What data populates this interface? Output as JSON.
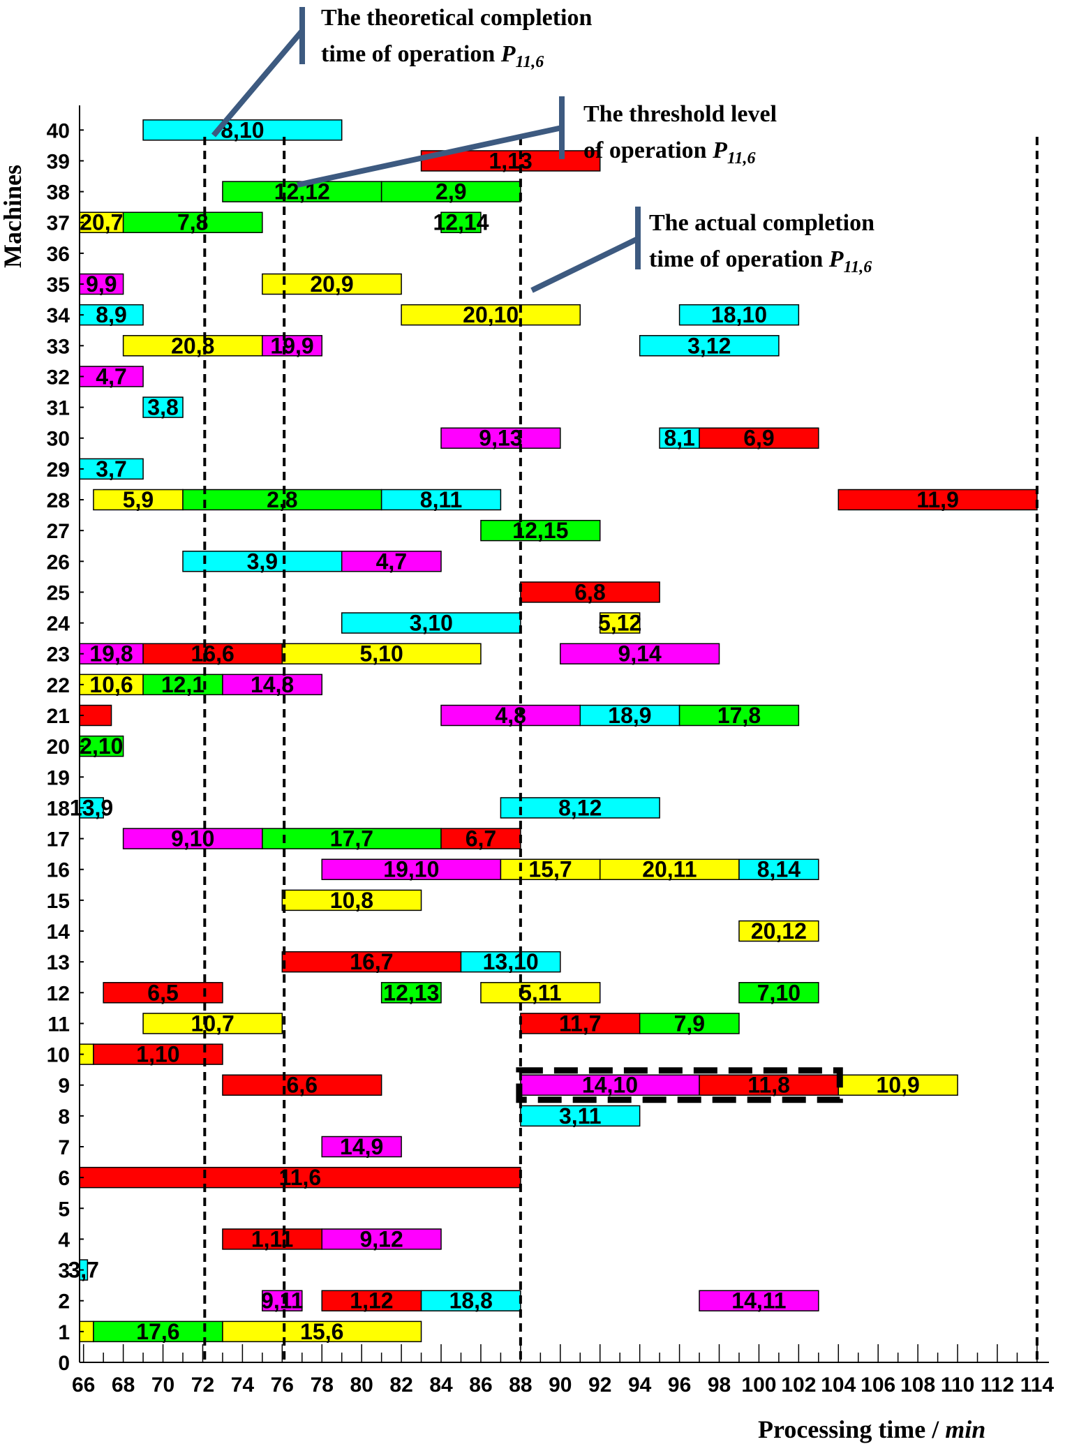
{
  "chart_data": {
    "type": "gantt",
    "title": "",
    "xlabel": {
      "text": "Processing time / ",
      "unit": "min"
    },
    "ylabel": "Machines",
    "xlim": [
      65.8,
      114.6
    ],
    "ylim": [
      0,
      40.8
    ],
    "x_ticks": [
      66,
      68,
      70,
      72,
      74,
      76,
      78,
      80,
      82,
      84,
      86,
      88,
      90,
      92,
      94,
      96,
      98,
      100,
      102,
      104,
      106,
      108,
      110,
      112,
      114
    ],
    "y_ticks": [
      0,
      1,
      2,
      3,
      4,
      5,
      6,
      7,
      8,
      9,
      10,
      11,
      12,
      13,
      14,
      15,
      16,
      17,
      18,
      19,
      20,
      21,
      22,
      23,
      24,
      25,
      26,
      27,
      28,
      29,
      30,
      31,
      32,
      33,
      34,
      35,
      36,
      37,
      38,
      39,
      40
    ],
    "colors": {
      "cyan": "#00ffff",
      "red": "#ff0000",
      "green": "#00ff00",
      "yellow": "#ffff00",
      "magenta": "#ff00ff",
      "annotation": "#3d5a80"
    },
    "vertical_lines": [
      72.1,
      76.1,
      88,
      114
    ],
    "bars": [
      {
        "machine": 40,
        "start": 69,
        "end": 79,
        "color": "cyan",
        "label": "8,10"
      },
      {
        "machine": 39,
        "start": 83,
        "end": 92,
        "color": "red",
        "label": "1,13"
      },
      {
        "machine": 38,
        "start": 73,
        "end": 81,
        "color": "green",
        "label": "12,12"
      },
      {
        "machine": 38,
        "start": 81,
        "end": 88,
        "color": "green",
        "label": "2,9"
      },
      {
        "machine": 37,
        "start": 65.8,
        "end": 68,
        "color": "yellow",
        "label": "20,7"
      },
      {
        "machine": 37,
        "start": 68,
        "end": 75,
        "color": "green",
        "label": "7,8"
      },
      {
        "machine": 37,
        "start": 84,
        "end": 86,
        "color": "green",
        "label": "12,14"
      },
      {
        "machine": 35,
        "start": 65.8,
        "end": 68,
        "color": "magenta",
        "label": "9,9"
      },
      {
        "machine": 35,
        "start": 75,
        "end": 82,
        "color": "yellow",
        "label": "20,9"
      },
      {
        "machine": 34,
        "start": 65.8,
        "end": 69,
        "color": "cyan",
        "label": "8,9"
      },
      {
        "machine": 34,
        "start": 82,
        "end": 91,
        "color": "yellow",
        "label": "20,10"
      },
      {
        "machine": 34,
        "start": 96,
        "end": 102,
        "color": "cyan",
        "label": "18,10"
      },
      {
        "machine": 33,
        "start": 68,
        "end": 75,
        "color": "yellow",
        "label": "20,8"
      },
      {
        "machine": 33,
        "start": 75,
        "end": 78,
        "color": "magenta",
        "label": "19,9"
      },
      {
        "machine": 33,
        "start": 94,
        "end": 101,
        "color": "cyan",
        "label": "3,12"
      },
      {
        "machine": 32,
        "start": 65.8,
        "end": 69,
        "color": "magenta",
        "label": "4,7"
      },
      {
        "machine": 31,
        "start": 69,
        "end": 71,
        "color": "cyan",
        "label": "3,8"
      },
      {
        "machine": 30,
        "start": 84,
        "end": 90,
        "color": "magenta",
        "label": "9,13"
      },
      {
        "machine": 30,
        "start": 95,
        "end": 97,
        "color": "cyan",
        "label": "8,1"
      },
      {
        "machine": 30,
        "start": 97,
        "end": 103,
        "color": "red",
        "label": "6,9"
      },
      {
        "machine": 29,
        "start": 65.8,
        "end": 69,
        "color": "cyan",
        "label": "3,7"
      },
      {
        "machine": 28,
        "start": 66.5,
        "end": 71,
        "color": "yellow",
        "label": "5,9"
      },
      {
        "machine": 28,
        "start": 71,
        "end": 81,
        "color": "green",
        "label": "2,8"
      },
      {
        "machine": 28,
        "start": 81,
        "end": 87,
        "color": "cyan",
        "label": "8,11"
      },
      {
        "machine": 28,
        "start": 104,
        "end": 114,
        "color": "red",
        "label": "11,9"
      },
      {
        "machine": 27,
        "start": 86,
        "end": 92,
        "color": "green",
        "label": "12,15"
      },
      {
        "machine": 26,
        "start": 71,
        "end": 79,
        "color": "cyan",
        "label": "3,9"
      },
      {
        "machine": 26,
        "start": 79,
        "end": 84,
        "color": "magenta",
        "label": "4,7"
      },
      {
        "machine": 25,
        "start": 88,
        "end": 95,
        "color": "red",
        "label": "6,8"
      },
      {
        "machine": 24,
        "start": 79,
        "end": 88,
        "color": "cyan",
        "label": "3,10"
      },
      {
        "machine": 24,
        "start": 92,
        "end": 94,
        "color": "yellow",
        "label": "5,12"
      },
      {
        "machine": 23,
        "start": 65.8,
        "end": 69,
        "color": "magenta",
        "label": "19,8"
      },
      {
        "machine": 23,
        "start": 69,
        "end": 76,
        "color": "red",
        "label": "16,6"
      },
      {
        "machine": 23,
        "start": 76,
        "end": 86,
        "color": "yellow",
        "label": "5,10"
      },
      {
        "machine": 23,
        "start": 90,
        "end": 98,
        "color": "magenta",
        "label": "9,14"
      },
      {
        "machine": 22,
        "start": 65.8,
        "end": 69,
        "color": "yellow",
        "label": "10,6"
      },
      {
        "machine": 22,
        "start": 69,
        "end": 73,
        "color": "green",
        "label": "12,1"
      },
      {
        "machine": 22,
        "start": 73,
        "end": 78,
        "color": "magenta",
        "label": "14,8"
      },
      {
        "machine": 21,
        "start": 65.8,
        "end": 67.4,
        "color": "red",
        "label": ""
      },
      {
        "machine": 21,
        "start": 84,
        "end": 91,
        "color": "magenta",
        "label": "4,8"
      },
      {
        "machine": 21,
        "start": 91,
        "end": 96,
        "color": "cyan",
        "label": "18,9"
      },
      {
        "machine": 21,
        "start": 96,
        "end": 102,
        "color": "green",
        "label": "17,8"
      },
      {
        "machine": 20,
        "start": 65.8,
        "end": 68,
        "color": "green",
        "label": "2,10"
      },
      {
        "machine": 18,
        "start": 65.8,
        "end": 67,
        "color": "cyan",
        "label": "13,9"
      },
      {
        "machine": 18,
        "start": 87,
        "end": 95,
        "color": "cyan",
        "label": "8,12"
      },
      {
        "machine": 17,
        "start": 68,
        "end": 75,
        "color": "magenta",
        "label": "9,10"
      },
      {
        "machine": 17,
        "start": 75,
        "end": 84,
        "color": "green",
        "label": "17,7"
      },
      {
        "machine": 17,
        "start": 84,
        "end": 88,
        "color": "red",
        "label": "6,7"
      },
      {
        "machine": 16,
        "start": 78,
        "end": 87,
        "color": "magenta",
        "label": "19,10"
      },
      {
        "machine": 16,
        "start": 87,
        "end": 92,
        "color": "yellow",
        "label": "15,7"
      },
      {
        "machine": 16,
        "start": 92,
        "end": 99,
        "color": "yellow",
        "label": "20,11"
      },
      {
        "machine": 16,
        "start": 99,
        "end": 103,
        "color": "cyan",
        "label": "8,14"
      },
      {
        "machine": 15,
        "start": 76,
        "end": 83,
        "color": "yellow",
        "label": "10,8"
      },
      {
        "machine": 14,
        "start": 99,
        "end": 103,
        "color": "yellow",
        "label": "20,12"
      },
      {
        "machine": 13,
        "start": 76,
        "end": 85,
        "color": "red",
        "label": "16,7"
      },
      {
        "machine": 13,
        "start": 85,
        "end": 90,
        "color": "cyan",
        "label": "13,10"
      },
      {
        "machine": 12,
        "start": 67,
        "end": 73,
        "color": "red",
        "label": "6,5"
      },
      {
        "machine": 12,
        "start": 81,
        "end": 84,
        "color": "green",
        "label": "12,13"
      },
      {
        "machine": 12,
        "start": 86,
        "end": 92,
        "color": "yellow",
        "label": "5,11"
      },
      {
        "machine": 12,
        "start": 99,
        "end": 103,
        "color": "green",
        "label": "7,10"
      },
      {
        "machine": 11,
        "start": 69,
        "end": 76,
        "color": "yellow",
        "label": "10,7"
      },
      {
        "machine": 11,
        "start": 88,
        "end": 94,
        "color": "red",
        "label": "11,7"
      },
      {
        "machine": 11,
        "start": 94,
        "end": 99,
        "color": "green",
        "label": "7,9"
      },
      {
        "machine": 10,
        "start": 65.8,
        "end": 66.5,
        "color": "yellow",
        "label": ""
      },
      {
        "machine": 10,
        "start": 66.5,
        "end": 73,
        "color": "red",
        "label": "1,10"
      },
      {
        "machine": 9,
        "start": 73,
        "end": 81,
        "color": "red",
        "label": "6,6"
      },
      {
        "machine": 9,
        "start": 88,
        "end": 97,
        "color": "magenta",
        "label": "14,10"
      },
      {
        "machine": 9,
        "start": 97,
        "end": 104,
        "color": "red",
        "label": "11,8"
      },
      {
        "machine": 9,
        "start": 104,
        "end": 110,
        "color": "yellow",
        "label": "10,9"
      },
      {
        "machine": 8,
        "start": 88,
        "end": 94,
        "color": "cyan",
        "label": "3,11"
      },
      {
        "machine": 7,
        "start": 78,
        "end": 82,
        "color": "magenta",
        "label": "14,9"
      },
      {
        "machine": 6,
        "start": 65.8,
        "end": 88,
        "color": "red",
        "label": "11,6"
      },
      {
        "machine": 4,
        "start": 73,
        "end": 78,
        "color": "red",
        "label": "1,11"
      },
      {
        "machine": 4,
        "start": 78,
        "end": 84,
        "color": "magenta",
        "label": "9,12"
      },
      {
        "machine": 3,
        "start": 65.8,
        "end": 66.2,
        "color": "cyan",
        "label": "3,7"
      },
      {
        "machine": 2,
        "start": 75,
        "end": 77,
        "color": "magenta",
        "label": "9,11"
      },
      {
        "machine": 2,
        "start": 78,
        "end": 83,
        "color": "red",
        "label": "1,12"
      },
      {
        "machine": 2,
        "start": 83,
        "end": 88,
        "color": "cyan",
        "label": "18,8"
      },
      {
        "machine": 2,
        "start": 97,
        "end": 103,
        "color": "magenta",
        "label": "14,11"
      },
      {
        "machine": 1,
        "start": 65.8,
        "end": 66.5,
        "color": "yellow",
        "label": ""
      },
      {
        "machine": 1,
        "start": 66.5,
        "end": 73,
        "color": "green",
        "label": "17,6"
      },
      {
        "machine": 1,
        "start": 73,
        "end": 83,
        "color": "yellow",
        "label": "15,6"
      }
    ],
    "highlight": {
      "machine": 9,
      "start": 88,
      "end": 104
    },
    "annotations": [
      {
        "line1": "The theoretical completion",
        "line2_prefix": "time of operation ",
        "symbol": "P",
        "subscript": "11,6"
      },
      {
        "line1": "The threshold level",
        "line2_prefix": "of operation ",
        "symbol": "P",
        "subscript": "11,6"
      },
      {
        "line1": "The actual completion",
        "line2_prefix": "time of operation ",
        "symbol": "P",
        "subscript": "11,6"
      }
    ]
  }
}
